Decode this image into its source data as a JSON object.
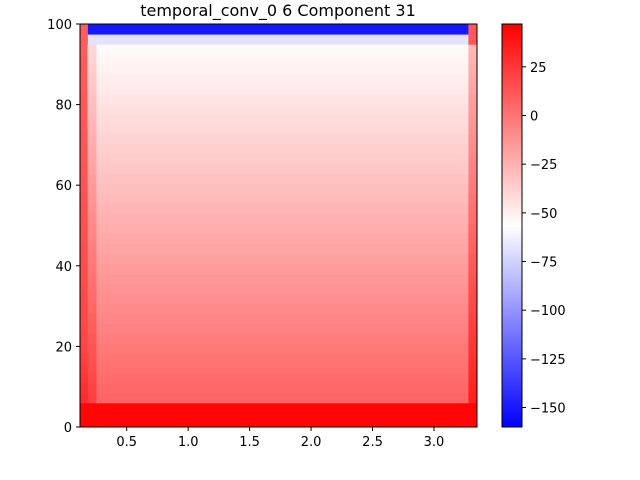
{
  "chart_data": {
    "type": "heatmap",
    "title": "temporal_conv_0 6 Component 31",
    "xlabel": "",
    "ylabel": "",
    "xlim": [
      0.12,
      3.35
    ],
    "ylim": [
      0,
      100
    ],
    "x_ticks": [
      "0.5",
      "1.0",
      "1.5",
      "2.0",
      "2.5",
      "3.0"
    ],
    "x_tick_values": [
      0.5,
      1.0,
      1.5,
      2.0,
      2.5,
      3.0
    ],
    "y_ticks": [
      "0",
      "20",
      "40",
      "60",
      "80",
      "100"
    ],
    "y_tick_values": [
      0,
      20,
      40,
      60,
      80,
      100
    ],
    "colormap": "bwr",
    "colors": {
      "low": "#0000ff",
      "mid": "#ffffff",
      "high": "#ff0000"
    },
    "colorbar": {
      "range": [
        -160,
        47
      ],
      "ticks": [
        "25",
        "0",
        "−25",
        "−50",
        "−75",
        "−100",
        "−125",
        "−150"
      ],
      "tick_values": [
        25,
        0,
        -25,
        -50,
        -75,
        -100,
        -125,
        -150
      ]
    },
    "columns": {
      "left_edge": [
        0.12,
        0.18
      ],
      "left_inner": [
        0.18,
        0.25
      ],
      "interior": [
        0.25,
        3.28
      ],
      "right_edge": [
        3.28,
        3.35
      ]
    },
    "rows": {
      "bottom_band": {
        "y": [
          0,
          6
        ],
        "value": 45
      },
      "gradient": {
        "y": [
          6,
          95
        ],
        "bottom_value": 10,
        "top_value": -49
      },
      "light_band": {
        "y": [
          95,
          97.5
        ],
        "value": -62
      },
      "top_band": {
        "y": [
          97.5,
          100
        ],
        "value": -150
      }
    },
    "grid": false,
    "legend": "none"
  }
}
